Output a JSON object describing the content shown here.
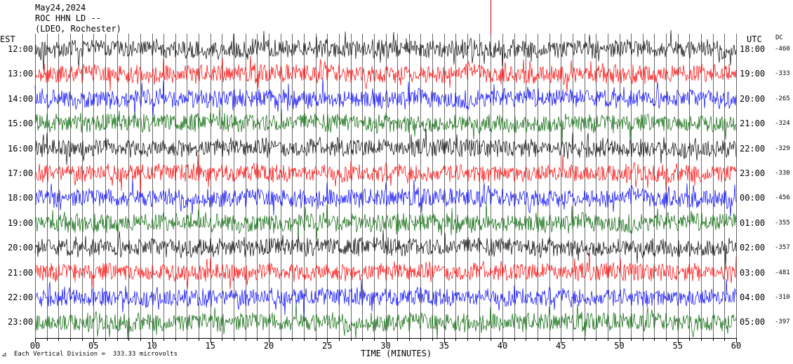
{
  "header": {
    "date": "May24,2024",
    "station": "ROC HHN LD --",
    "network": "(LDEO, Rochester)"
  },
  "axes": {
    "left_tz": "EST",
    "right_tz": "UTC",
    "dc_header": "DC",
    "xlabel": "TIME (MINUTES)"
  },
  "footer": {
    "scale_note": "Each Vertical Division =  333.33 microvolts"
  },
  "chart_data": {
    "type": "line",
    "title": "",
    "xlabel": "TIME (MINUTES)",
    "xlim": [
      0,
      60
    ],
    "x_ticks": [
      "00",
      "05",
      "10",
      "15",
      "20",
      "25",
      "30",
      "35",
      "40",
      "45",
      "50",
      "55",
      "60"
    ],
    "grid": true,
    "trace_colors": [
      "#000000",
      "#ff0000",
      "#0000ff",
      "#006400"
    ],
    "series": [
      {
        "est": "12:00",
        "utc": "18:00",
        "dc": "-460"
      },
      {
        "est": "13:00",
        "utc": "19:00",
        "dc": "-333"
      },
      {
        "est": "14:00",
        "utc": "20:00",
        "dc": "-265"
      },
      {
        "est": "15:00",
        "utc": "21:00",
        "dc": "-324"
      },
      {
        "est": "16:00",
        "utc": "22:00",
        "dc": "-329"
      },
      {
        "est": "17:00",
        "utc": "23:00",
        "dc": "-330"
      },
      {
        "est": "18:00",
        "utc": "00:00",
        "dc": "-456"
      },
      {
        "est": "19:00",
        "utc": "01:00",
        "dc": "-355"
      },
      {
        "est": "20:00",
        "utc": "02:00",
        "dc": "-357"
      },
      {
        "est": "21:00",
        "utc": "03:00",
        "dc": "-481"
      },
      {
        "est": "22:00",
        "utc": "04:00",
        "dc": "-310"
      },
      {
        "est": "23:00",
        "utc": "05:00",
        "dc": "-397"
      }
    ]
  }
}
